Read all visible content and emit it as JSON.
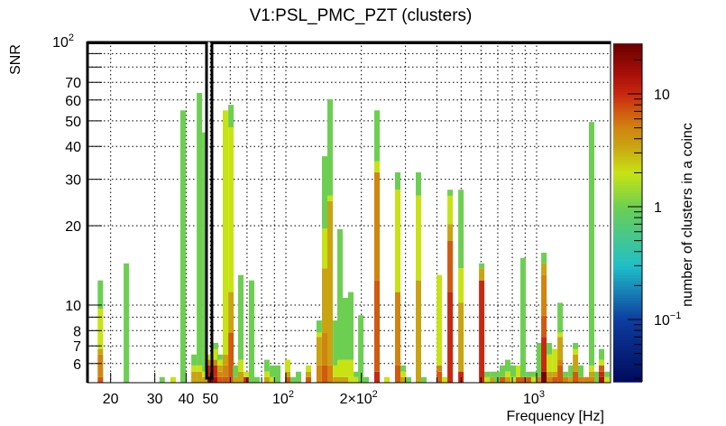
{
  "chart_data": {
    "type": "heatmap",
    "title": "V1:PSL_PMC_PZT (clusters)",
    "xlabel": "Frequency [Hz]",
    "ylabel": "SNR",
    "zlabel": "number of clusters in a coinc",
    "xscale": "log",
    "yscale": "log",
    "zscale": "log",
    "xlim": [
      16.2,
      1970
    ],
    "ylim": [
      5.07,
      100
    ],
    "zlim": [
      0.028,
      28
    ],
    "grid": true,
    "legend": "colorbar-right",
    "x_ticks": [
      {
        "value": 20,
        "base": "20",
        "exp": ""
      },
      {
        "value": 30,
        "base": "30",
        "exp": ""
      },
      {
        "value": 40,
        "base": "40",
        "exp": ""
      },
      {
        "value": 50,
        "base": "50",
        "exp": ""
      },
      {
        "value": 100,
        "base": "10",
        "exp": "2"
      },
      {
        "value": 200,
        "base": "2×10",
        "exp": "2"
      },
      {
        "value": 1000,
        "base": "10",
        "exp": "3"
      }
    ],
    "x_grid": [
      20,
      30,
      40,
      50,
      60,
      70,
      80,
      90,
      100,
      200,
      300,
      400,
      500,
      600,
      700,
      800,
      900,
      1000
    ],
    "y_ticks": [
      {
        "value": 100,
        "base": "10",
        "exp": "2"
      },
      {
        "value": 70,
        "base": "70",
        "exp": ""
      },
      {
        "value": 60,
        "base": "60",
        "exp": ""
      },
      {
        "value": 50,
        "base": "50",
        "exp": ""
      },
      {
        "value": 40,
        "base": "40",
        "exp": ""
      },
      {
        "value": 30,
        "base": "30",
        "exp": ""
      },
      {
        "value": 20,
        "base": "20",
        "exp": ""
      },
      {
        "value": 10,
        "base": "10",
        "exp": ""
      },
      {
        "value": 8,
        "base": "8",
        "exp": ""
      },
      {
        "value": 7,
        "base": "7",
        "exp": ""
      },
      {
        "value": 6,
        "base": "6",
        "exp": ""
      }
    ],
    "y_grid": [
      6,
      7,
      8,
      9,
      10,
      20,
      30,
      40,
      50,
      60,
      70,
      80,
      90
    ],
    "z_ticks": [
      {
        "value": 10,
        "base": "10",
        "exp": ""
      },
      {
        "value": 1,
        "base": "1",
        "exp": ""
      },
      {
        "value": 0.1,
        "base": "10",
        "exp": "−1"
      }
    ],
    "colorscale": [
      [
        0.028,
        "#000a5a"
      ],
      [
        0.1,
        "#0d3da0"
      ],
      [
        0.3,
        "#1fbfc8"
      ],
      [
        1,
        "#6dcf52"
      ],
      [
        2,
        "#c8e314"
      ],
      [
        3.5,
        "#c9a312"
      ],
      [
        5,
        "#d08510"
      ],
      [
        7,
        "#d05a10"
      ],
      [
        10,
        "#c82810"
      ],
      [
        15,
        "#a81008"
      ],
      [
        28,
        "#6a0000"
      ]
    ],
    "columns_note": "each column: frequency f (Hz), cells bottom-up as [snr_top, clusters]",
    "columns": [
      {
        "f": 18.2,
        "cells": [
          [
            5.33,
            7
          ],
          [
            6.49,
            5
          ],
          [
            6.81,
            3.5
          ],
          [
            9.69,
            2
          ],
          [
            12.4,
            1
          ]
        ]
      },
      {
        "f": 23.1,
        "cells": [
          [
            14.4,
            1
          ]
        ]
      },
      {
        "f": 32.1,
        "cells": [
          [
            5.33,
            1
          ]
        ]
      },
      {
        "f": 35.5,
        "cells": [
          [
            5.33,
            2
          ]
        ]
      },
      {
        "f": 38.9,
        "cells": [
          [
            54.8,
            1
          ]
        ]
      },
      {
        "f": 43.0,
        "cells": [
          [
            5.59,
            3.5
          ],
          [
            5.9,
            2
          ],
          [
            6.49,
            1
          ]
        ]
      },
      {
        "f": 45.2,
        "cells": [
          [
            5.59,
            3.5
          ],
          [
            5.9,
            2
          ],
          [
            63.8,
            1
          ]
        ]
      },
      {
        "f": 47.5,
        "cells": [
          [
            5.33,
            3.5
          ],
          [
            5.59,
            2
          ],
          [
            45.2,
            1
          ]
        ]
      },
      {
        "f": 49.9,
        "cells": [
          [
            5.33,
            25
          ],
          [
            5.9,
            10
          ],
          [
            6.2,
            5
          ],
          [
            6.49,
            2
          ]
        ]
      },
      {
        "f": 52.4,
        "cells": [
          [
            5.33,
            15
          ],
          [
            5.9,
            10
          ],
          [
            6.2,
            5
          ],
          [
            6.81,
            2
          ],
          [
            7.18,
            1
          ]
        ]
      },
      {
        "f": 54.6,
        "cells": [
          [
            5.33,
            7
          ],
          [
            5.59,
            5
          ],
          [
            5.9,
            3.5
          ],
          [
            6.2,
            2
          ],
          [
            6.49,
            1
          ]
        ]
      },
      {
        "f": 57.4,
        "cells": [
          [
            5.33,
            7
          ],
          [
            5.9,
            5
          ],
          [
            6.49,
            3.5
          ],
          [
            54.8,
            2
          ]
        ]
      },
      {
        "f": 60.4,
        "cells": [
          [
            7.87,
            7
          ],
          [
            11.2,
            3.5
          ],
          [
            47.3,
            2
          ],
          [
            57.5,
            1
          ]
        ]
      },
      {
        "f": 63.0,
        "cells": [
          [
            5.33,
            3.5
          ],
          [
            5.9,
            1
          ]
        ]
      },
      {
        "f": 66.1,
        "cells": [
          [
            5.59,
            3.5
          ],
          [
            6.2,
            2
          ],
          [
            13.0,
            1
          ]
        ]
      },
      {
        "f": 69.5,
        "cells": [
          [
            5.33,
            10
          ],
          [
            5.59,
            2
          ]
        ]
      },
      {
        "f": 73.0,
        "cells": [
          [
            12.4,
            1
          ]
        ]
      },
      {
        "f": 76.7,
        "cells": [
          [
            5.33,
            1
          ]
        ]
      },
      {
        "f": 84.0,
        "cells": [
          [
            5.33,
            3.5
          ],
          [
            5.59,
            2
          ],
          [
            6.2,
            1
          ]
        ]
      },
      {
        "f": 88.3,
        "cells": [
          [
            5.33,
            2
          ],
          [
            5.9,
            1
          ]
        ]
      },
      {
        "f": 92.8,
        "cells": [
          [
            5.9,
            1
          ]
        ]
      },
      {
        "f": 101.7,
        "cells": [
          [
            5.33,
            7
          ],
          [
            5.59,
            3.5
          ],
          [
            6.2,
            2
          ]
        ]
      },
      {
        "f": 106.9,
        "cells": [
          [
            5.33,
            1
          ]
        ]
      },
      {
        "f": 112.3,
        "cells": [
          [
            5.59,
            1
          ]
        ]
      },
      {
        "f": 123.0,
        "cells": [
          [
            5.33,
            7
          ],
          [
            5.59,
            3.5
          ],
          [
            5.9,
            2
          ]
        ]
      },
      {
        "f": 135.8,
        "cells": [
          [
            5.9,
            5
          ],
          [
            7.57,
            3.5
          ],
          [
            7.87,
            2
          ],
          [
            8.74,
            1
          ]
        ]
      },
      {
        "f": 142.8,
        "cells": [
          [
            5.9,
            7
          ],
          [
            7.87,
            5
          ],
          [
            13.8,
            3.5
          ],
          [
            19.5,
            2
          ],
          [
            36.7,
            1
          ]
        ]
      },
      {
        "f": 150.0,
        "cells": [
          [
            5.9,
            5
          ],
          [
            24.8,
            3.5
          ],
          [
            26.0,
            2
          ],
          [
            60.4,
            1
          ]
        ]
      },
      {
        "f": 157.8,
        "cells": [
          [
            5.33,
            3.5
          ],
          [
            5.9,
            2
          ],
          [
            8.74,
            1
          ]
        ]
      },
      {
        "f": 164.4,
        "cells": [
          [
            5.33,
            3.5
          ],
          [
            6.2,
            2
          ],
          [
            19.4,
            1
          ]
        ]
      },
      {
        "f": 172.7,
        "cells": [
          [
            5.33,
            3.5
          ],
          [
            6.2,
            2
          ],
          [
            10.65,
            1
          ]
        ]
      },
      {
        "f": 181.5,
        "cells": [
          [
            5.33,
            2
          ],
          [
            6.2,
            2
          ],
          [
            11.2,
            1
          ]
        ]
      },
      {
        "f": 190.9,
        "cells": [
          [
            5.33,
            2
          ],
          [
            5.59,
            1
          ]
        ]
      },
      {
        "f": 199.0,
        "cells": [
          [
            9.15,
            1
          ]
        ]
      },
      {
        "f": 209.0,
        "cells": [
          [
            5.33,
            1
          ]
        ]
      },
      {
        "f": 230.8,
        "cells": [
          [
            5.59,
            10
          ],
          [
            12.4,
            7
          ],
          [
            31.9,
            5
          ],
          [
            35.1,
            2
          ],
          [
            54.8,
            1
          ]
        ]
      },
      {
        "f": 252.9,
        "cells": [
          [
            5.33,
            2
          ]
        ]
      },
      {
        "f": 279.3,
        "cells": [
          [
            5.9,
            7
          ],
          [
            11.2,
            5
          ],
          [
            27.4,
            2
          ],
          [
            31.9,
            1
          ]
        ]
      },
      {
        "f": 293.6,
        "cells": [
          [
            5.33,
            3.5
          ],
          [
            5.59,
            2
          ],
          [
            5.9,
            1
          ]
        ]
      },
      {
        "f": 308.5,
        "cells": [
          [
            5.33,
            1
          ]
        ]
      },
      {
        "f": 338.0,
        "cells": [
          [
            12.4,
            3.5
          ],
          [
            26.0,
            2
          ],
          [
            31.9,
            1
          ]
        ]
      },
      {
        "f": 355.0,
        "cells": [
          [
            5.33,
            1
          ]
        ]
      },
      {
        "f": 409.0,
        "cells": [
          [
            5.59,
            7
          ],
          [
            5.9,
            5
          ],
          [
            13.0,
            2
          ]
        ]
      },
      {
        "f": 430.0,
        "cells": [
          [
            5.33,
            2
          ]
        ]
      },
      {
        "f": 452.0,
        "cells": [
          [
            11.2,
            10
          ],
          [
            17.5,
            7
          ],
          [
            20.3,
            3.5
          ],
          [
            26.0,
            2
          ],
          [
            27.4,
            1
          ]
        ]
      },
      {
        "f": 499.0,
        "cells": [
          [
            5.59,
            10
          ],
          [
            10.2,
            3.5
          ],
          [
            13.8,
            2
          ],
          [
            27.4,
            1
          ]
        ]
      },
      {
        "f": 604.0,
        "cells": [
          [
            12.4,
            10
          ],
          [
            13.8,
            3.5
          ],
          [
            14.4,
            1
          ]
        ]
      },
      {
        "f": 634.0,
        "cells": [
          [
            5.33,
            2
          ],
          [
            5.59,
            1
          ]
        ]
      },
      {
        "f": 667.0,
        "cells": [
          [
            5.33,
            3.5
          ],
          [
            5.59,
            1
          ]
        ]
      },
      {
        "f": 695.0,
        "cells": [
          [
            5.59,
            1
          ]
        ]
      },
      {
        "f": 730.0,
        "cells": [
          [
            5.33,
            7
          ],
          [
            5.9,
            1
          ]
        ]
      },
      {
        "f": 767.0,
        "cells": [
          [
            5.33,
            3.5
          ],
          [
            5.59,
            2
          ],
          [
            6.2,
            1
          ]
        ]
      },
      {
        "f": 806.0,
        "cells": [
          [
            5.33,
            2
          ],
          [
            5.9,
            1
          ]
        ]
      },
      {
        "f": 847.0,
        "cells": [
          [
            5.33,
            7
          ],
          [
            5.9,
            2
          ]
        ]
      },
      {
        "f": 883.0,
        "cells": [
          [
            5.33,
            7
          ],
          [
            15.1,
            1
          ]
        ]
      },
      {
        "f": 929.0,
        "cells": [
          [
            5.33,
            7
          ],
          [
            5.59,
            1
          ]
        ]
      },
      {
        "f": 975.0,
        "cells": [
          [
            5.33,
            2
          ],
          [
            5.59,
            1
          ]
        ]
      },
      {
        "f": 1025.0,
        "cells": [
          [
            5.33,
            5
          ],
          [
            7.18,
            1
          ]
        ]
      },
      {
        "f": 1069.0,
        "cells": [
          [
            5.59,
            25
          ],
          [
            7.57,
            10
          ],
          [
            9.1,
            7
          ],
          [
            13.0,
            5
          ],
          [
            14.4,
            3.5
          ],
          [
            15.8,
            1
          ]
        ]
      },
      {
        "f": 1123.0,
        "cells": [
          [
            5.33,
            5
          ],
          [
            5.59,
            3.5
          ],
          [
            6.49,
            2
          ],
          [
            7.18,
            1
          ]
        ]
      },
      {
        "f": 1181.0,
        "cells": [
          [
            5.33,
            7
          ],
          [
            5.59,
            3.5
          ],
          [
            6.81,
            2
          ]
        ]
      },
      {
        "f": 1241.0,
        "cells": [
          [
            5.9,
            7
          ],
          [
            6.2,
            5
          ],
          [
            7.57,
            3.5
          ],
          [
            7.87,
            2
          ],
          [
            10.2,
            1
          ]
        ]
      },
      {
        "f": 1303.0,
        "cells": [
          [
            5.33,
            5
          ],
          [
            5.59,
            1
          ]
        ]
      },
      {
        "f": 1371.0,
        "cells": [
          [
            5.33,
            3.5
          ],
          [
            5.9,
            1
          ]
        ]
      },
      {
        "f": 1429.0,
        "cells": [
          [
            5.59,
            7
          ],
          [
            6.49,
            3.5
          ],
          [
            6.81,
            2
          ],
          [
            7.18,
            1
          ]
        ]
      },
      {
        "f": 1501.0,
        "cells": [
          [
            5.33,
            5
          ],
          [
            5.9,
            1
          ]
        ]
      },
      {
        "f": 1578.0,
        "cells": [
          [
            5.33,
            5
          ]
        ]
      },
      {
        "f": 1657.0,
        "cells": [
          [
            5.33,
            5
          ],
          [
            5.59,
            3.5
          ],
          [
            5.9,
            2
          ],
          [
            49.5,
            1
          ]
        ]
      },
      {
        "f": 1742.0,
        "cells": [
          [
            5.59,
            1
          ]
        ]
      },
      {
        "f": 1816.0,
        "cells": [
          [
            5.33,
            15
          ],
          [
            5.59,
            10
          ],
          [
            5.9,
            7
          ],
          [
            6.2,
            2
          ],
          [
            6.81,
            1
          ]
        ]
      },
      {
        "f": 1909.0,
        "cells": [
          [
            5.33,
            2
          ],
          [
            5.59,
            1
          ]
        ]
      }
    ]
  }
}
